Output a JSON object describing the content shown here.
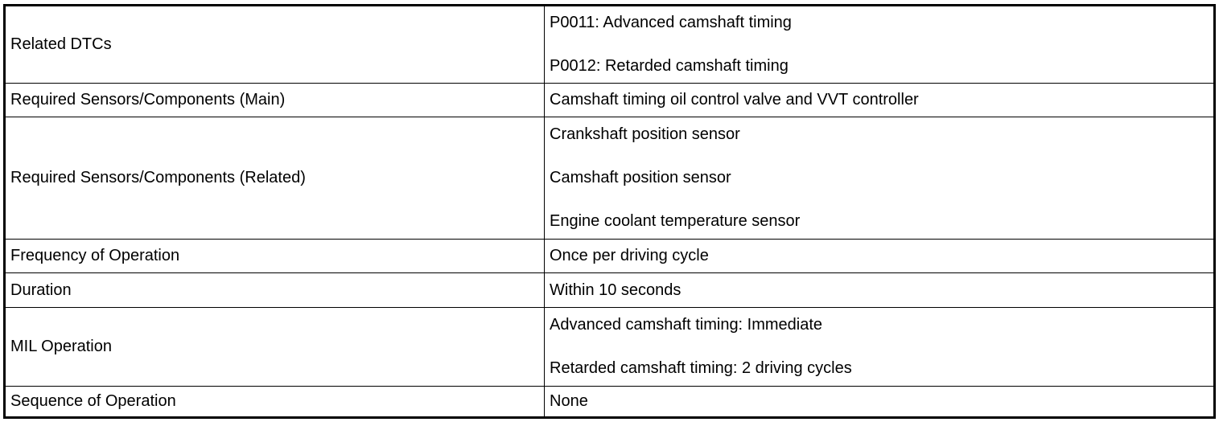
{
  "rows": [
    {
      "label": "Related DTCs",
      "values": [
        "P0011: Advanced camshaft timing",
        "P0012: Retarded camshaft timing"
      ]
    },
    {
      "label": "Required Sensors/Components (Main)",
      "values": [
        "Camshaft timing oil control valve and VVT controller"
      ]
    },
    {
      "label": "Required Sensors/Components (Related)",
      "values": [
        "Crankshaft position sensor",
        "Camshaft position sensor",
        "Engine coolant temperature sensor"
      ]
    },
    {
      "label": "Frequency of Operation",
      "values": [
        "Once per driving cycle"
      ]
    },
    {
      "label": "Duration",
      "values": [
        "Within 10 seconds"
      ]
    },
    {
      "label": "MIL Operation",
      "values": [
        "Advanced camshaft timing: Immediate",
        "Retarded camshaft timing: 2 driving cycles"
      ]
    },
    {
      "label": "Sequence of Operation",
      "values": [
        "None"
      ]
    }
  ]
}
